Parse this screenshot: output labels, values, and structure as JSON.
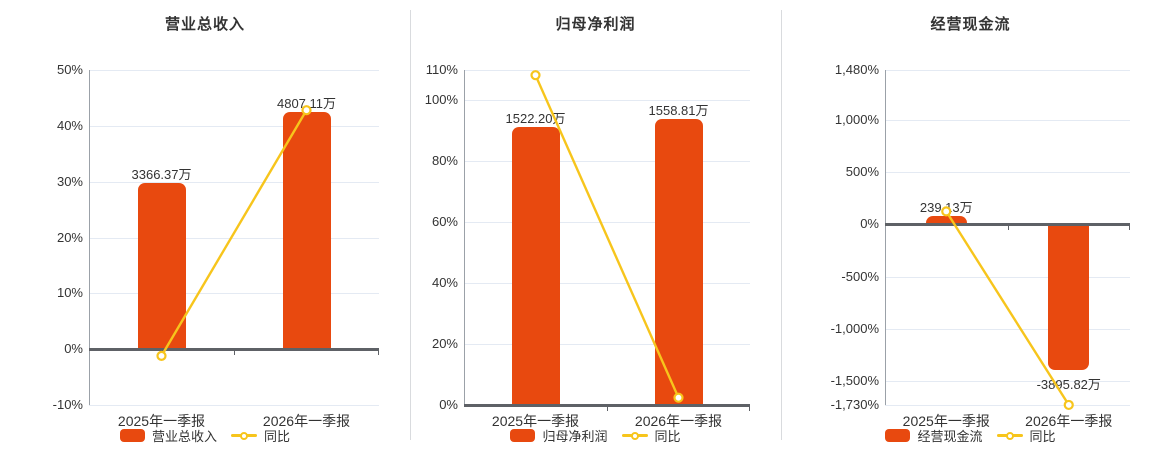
{
  "colors": {
    "bar": "#e8490f",
    "line": "#f7c51c",
    "grid": "#e4eaf3",
    "zero_line": "#5e6166",
    "axis_line": "#9ba1a8",
    "divider": "#d9dbde",
    "text": "#333333",
    "background": "#ffffff"
  },
  "chart_data": [
    {
      "type": "bar+line",
      "title": "营业总收入",
      "categories": [
        "2025年一季报",
        "2026年一季报"
      ],
      "category_keys": [
        "2025-q1",
        "2026-q1"
      ],
      "bar_series": {
        "name": "营业总收入",
        "unit": "万",
        "values": [
          3366.37,
          4807.11
        ],
        "labels": [
          "3366.37万",
          "4807.11万"
        ]
      },
      "line_series": {
        "name": "同比",
        "unit": "%",
        "values": [
          -1.2,
          42.8
        ]
      },
      "bar_display_values": [
        29.7,
        42.5
      ],
      "y_axis": {
        "min": -10,
        "max": 50,
        "tick_values": [
          50,
          40,
          30,
          20,
          10,
          0,
          -10
        ],
        "tick_labels": [
          "50%",
          "40%",
          "30%",
          "20%",
          "10%",
          "0%",
          "-10%"
        ]
      },
      "grid": true,
      "legend_position": "bottom"
    },
    {
      "type": "bar+line",
      "title": "归母净利润",
      "categories": [
        "2025年一季报",
        "2026年一季报"
      ],
      "category_keys": [
        "2025-q1",
        "2026-q1"
      ],
      "bar_series": {
        "name": "归母净利润",
        "unit": "万",
        "values": [
          1522.2,
          1558.81
        ],
        "labels": [
          "1522.20万",
          "1558.81万"
        ]
      },
      "line_series": {
        "name": "同比",
        "unit": "%",
        "values": [
          108.3,
          2.4
        ]
      },
      "bar_display_values": [
        91.3,
        93.8
      ],
      "y_axis": {
        "min": 0,
        "max": 110,
        "tick_values": [
          110,
          100,
          80,
          60,
          40,
          20,
          0
        ],
        "tick_labels": [
          "110%",
          "100%",
          "80%",
          "60%",
          "40%",
          "20%",
          "0%"
        ]
      },
      "grid": true,
      "legend_position": "bottom"
    },
    {
      "type": "bar+line",
      "title": "经营现金流",
      "categories": [
        "2025年一季报",
        "2026年一季报"
      ],
      "category_keys": [
        "2025-q1",
        "2026-q1"
      ],
      "bar_series": {
        "name": "经营现金流",
        "unit": "万",
        "values": [
          239.13,
          -3895.82
        ],
        "labels": [
          "239.13万",
          "-3895.82万"
        ]
      },
      "line_series": {
        "name": "同比",
        "unit": "%",
        "values": [
          125,
          -1729.2
        ]
      },
      "bar_display_values": [
        85,
        -1395
      ],
      "y_axis": {
        "min": -1730,
        "max": 1480,
        "tick_values": [
          1480,
          1000,
          500,
          0,
          -500,
          -1000,
          -1500,
          -1730
        ],
        "tick_labels": [
          "1,480%",
          "1,000%",
          "500%",
          "0%",
          "-500%",
          "-1,000%",
          "-1,500%",
          "-1,730%"
        ]
      },
      "grid": true,
      "legend_position": "bottom"
    }
  ]
}
